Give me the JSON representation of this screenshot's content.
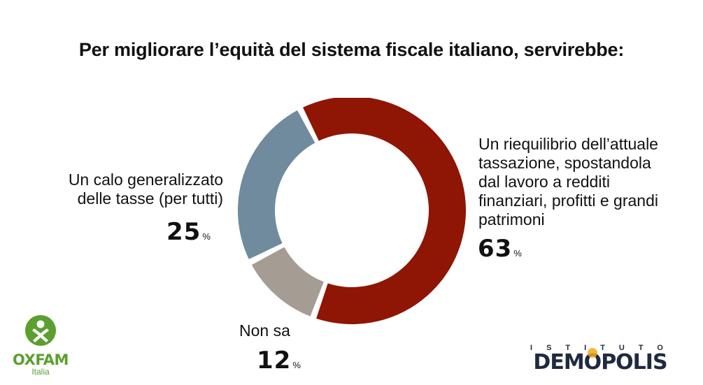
{
  "title": "Per migliorare l’equità del sistema fiscale italiano, servirebbe:",
  "chart_data": {
    "type": "pie",
    "subtype": "donut",
    "title": "Per migliorare l’equità del sistema fiscale italiano, servirebbe:",
    "unit": "%",
    "slices": [
      {
        "label": "Un riequilibrio dell’attuale tassazione, spostandola dal lavoro a redditi finanziari, profitti e grandi patrimoni",
        "value": 63,
        "color": "#8f1505"
      },
      {
        "label": "Non sa",
        "value": 12,
        "color": "#a59d94"
      },
      {
        "label": "Un calo generalizzato delle tasse (per tutti)",
        "value": 25,
        "color": "#6f8b9d"
      }
    ]
  },
  "labels": {
    "left_line1": "Un calo generalizzato",
    "left_line2": "delle tasse (per tutti)",
    "left_value": "25",
    "right_line1": "Un riequilibrio dell’attuale",
    "right_line2": "tassazione, spostandola",
    "right_line3": "dal lavoro a redditi",
    "right_line4": "finanziari, profitti e grandi",
    "right_line5": "patrimoni",
    "right_value": "63",
    "bottom_line1": "Non sa",
    "bottom_value": "12",
    "pct": "%"
  },
  "logos": {
    "oxfam_name": "OXFAM",
    "oxfam_sub": "Italia",
    "oxfam_color": "#5ba02e",
    "demopolis_top": "ISTITUTO",
    "demopolis_pre": "DEM",
    "demopolis_o": "O",
    "demopolis_post": "POLIS"
  }
}
